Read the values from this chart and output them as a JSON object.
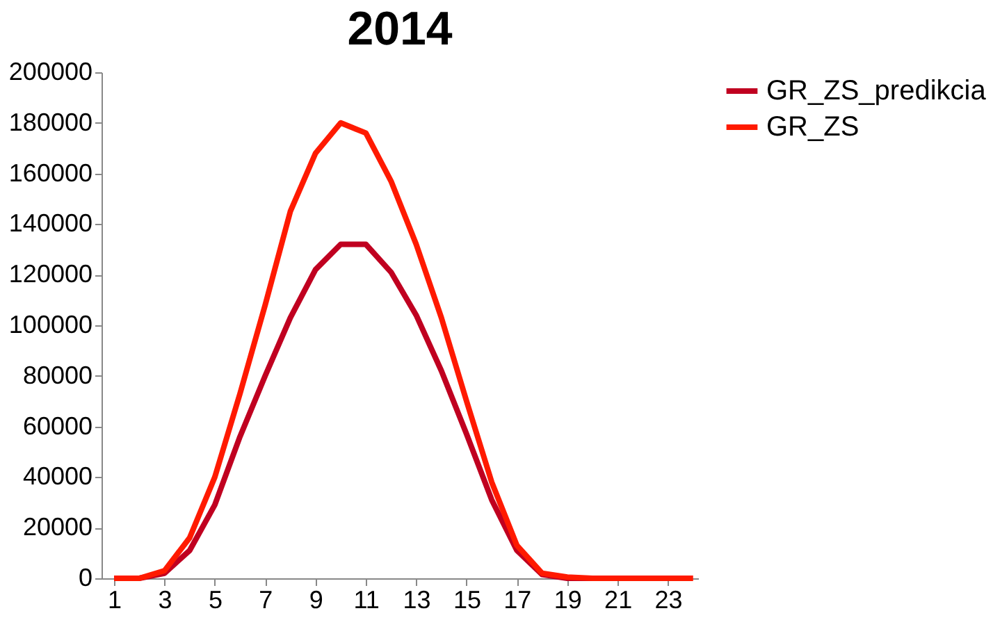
{
  "chart_data": {
    "type": "line",
    "title": "2014",
    "x": [
      1,
      2,
      3,
      4,
      5,
      6,
      7,
      8,
      9,
      10,
      11,
      12,
      13,
      14,
      15,
      16,
      17,
      18,
      19,
      20,
      21,
      22,
      23,
      24
    ],
    "series": [
      {
        "name": "GR_ZS_predikcia",
        "color": "#c00020",
        "values": [
          0,
          0,
          2000,
          11000,
          29000,
          56000,
          80000,
          103000,
          122000,
          132000,
          132000,
          121000,
          104000,
          82000,
          57000,
          31000,
          11000,
          1500,
          0,
          0,
          0,
          null,
          null,
          null
        ]
      },
      {
        "name": "GR_ZS",
        "color": "#ff1a00",
        "values": [
          0,
          0,
          3000,
          16000,
          40000,
          73000,
          108000,
          145000,
          168000,
          180000,
          176000,
          157000,
          132000,
          103000,
          70000,
          38000,
          13000,
          2000,
          500,
          0,
          0,
          0,
          0,
          0
        ]
      }
    ],
    "xlim": [
      0.5,
      24.2
    ],
    "xticks": [
      1,
      3,
      5,
      7,
      9,
      11,
      13,
      15,
      17,
      19,
      21,
      23
    ],
    "ylim": [
      0,
      200000
    ],
    "yticks": [
      0,
      20000,
      40000,
      60000,
      80000,
      100000,
      120000,
      140000,
      160000,
      180000,
      200000
    ],
    "grid": false,
    "legend": "right",
    "marker": "none",
    "line_style": "solid"
  }
}
